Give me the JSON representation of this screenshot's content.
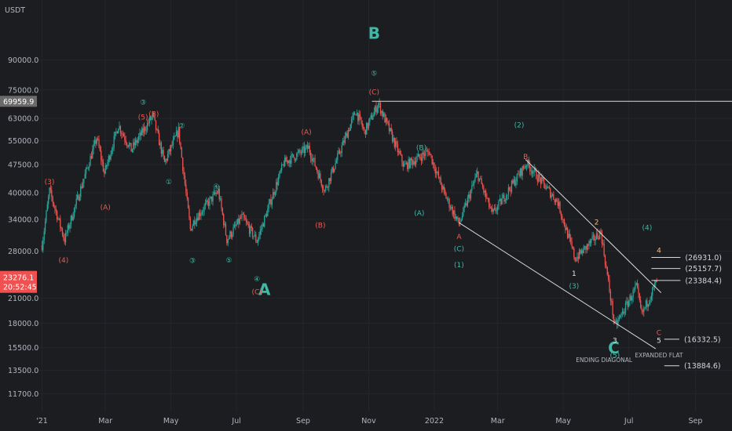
{
  "colors": {
    "background": "#1c1d21",
    "up": "#26a69a",
    "down": "#ef5350",
    "teal_label": "#3fb8a5",
    "red_label": "#f05a4f",
    "white_label": "#e6e6e6",
    "orange_label": "#f2b880",
    "price_tag": "#f05050",
    "last_tag": "#6a6a6a"
  },
  "chart_data": {
    "type": "candlestick",
    "symbol_unit": "USDT",
    "y_scale": "log",
    "ylim": [
      10500,
      130000
    ],
    "y_ticks": [
      {
        "label": "90000.0",
        "value": 90000
      },
      {
        "label": "75000.0",
        "value": 75000
      },
      {
        "label": "63000.0",
        "value": 63000
      },
      {
        "label": "55000.0",
        "value": 55000
      },
      {
        "label": "47500.0",
        "value": 47500
      },
      {
        "label": "40000.0",
        "value": 40000
      },
      {
        "label": "34000.0",
        "value": 34000
      },
      {
        "label": "28000.0",
        "value": 28000
      },
      {
        "label": "21000.0",
        "value": 21000
      },
      {
        "label": "18000.0",
        "value": 18000
      },
      {
        "label": "15500.0",
        "value": 15500
      },
      {
        "label": "13500.0",
        "value": 13500
      },
      {
        "label": "11700.0",
        "value": 11700
      }
    ],
    "x_ticks": [
      {
        "label": "'21",
        "date": "2021-01-01"
      },
      {
        "label": "Mar",
        "date": "2021-03-01"
      },
      {
        "label": "May",
        "date": "2021-05-01"
      },
      {
        "label": "Jul",
        "date": "2021-07-01"
      },
      {
        "label": "Sep",
        "date": "2021-09-01"
      },
      {
        "label": "Nov",
        "date": "2021-11-01"
      },
      {
        "label": "2022",
        "date": "2022-01-01"
      },
      {
        "label": "Mar",
        "date": "2022-03-01"
      },
      {
        "label": "May",
        "date": "2022-05-01"
      },
      {
        "label": "Jul",
        "date": "2022-07-01"
      },
      {
        "label": "Sep",
        "date": "2022-09-01"
      }
    ],
    "xlim": [
      "2020-12-28",
      "2022-10-05"
    ],
    "price_key_points": [
      {
        "date": "2021-01-01",
        "price": 29000
      },
      {
        "date": "2021-01-08",
        "price": 40500
      },
      {
        "date": "2021-01-22",
        "price": 30000
      },
      {
        "date": "2021-02-21",
        "price": 56000
      },
      {
        "date": "2021-02-28",
        "price": 45000
      },
      {
        "date": "2021-03-13",
        "price": 60500
      },
      {
        "date": "2021-03-25",
        "price": 52000
      },
      {
        "date": "2021-04-14",
        "price": 64000
      },
      {
        "date": "2021-04-25",
        "price": 48000
      },
      {
        "date": "2021-05-08",
        "price": 58500
      },
      {
        "date": "2021-05-19",
        "price": 32000
      },
      {
        "date": "2021-05-23",
        "price": 34000
      },
      {
        "date": "2021-06-14",
        "price": 40500
      },
      {
        "date": "2021-06-22",
        "price": 30000
      },
      {
        "date": "2021-07-06",
        "price": 34500
      },
      {
        "date": "2021-07-20",
        "price": 29800
      },
      {
        "date": "2021-08-14",
        "price": 48000
      },
      {
        "date": "2021-09-06",
        "price": 52700
      },
      {
        "date": "2021-09-21",
        "price": 40500
      },
      {
        "date": "2021-10-20",
        "price": 66000
      },
      {
        "date": "2021-10-28",
        "price": 58000
      },
      {
        "date": "2021-11-10",
        "price": 69000
      },
      {
        "date": "2021-12-04",
        "price": 47000
      },
      {
        "date": "2021-12-27",
        "price": 51500
      },
      {
        "date": "2022-01-10",
        "price": 40000
      },
      {
        "date": "2022-01-24",
        "price": 33000
      },
      {
        "date": "2022-02-10",
        "price": 45000
      },
      {
        "date": "2022-02-24",
        "price": 35000
      },
      {
        "date": "2022-03-28",
        "price": 48000
      },
      {
        "date": "2022-04-26",
        "price": 37700
      },
      {
        "date": "2022-05-12",
        "price": 26700
      },
      {
        "date": "2022-06-05",
        "price": 31500
      },
      {
        "date": "2022-06-18",
        "price": 17600
      },
      {
        "date": "2022-07-08",
        "price": 22500
      },
      {
        "date": "2022-07-13",
        "price": 19000
      },
      {
        "date": "2022-07-27",
        "price": 23300
      }
    ],
    "price_tags": {
      "last_high": "69959.9",
      "current_price": "23276.1",
      "countdown": "20:52:45"
    },
    "wave_labels": [
      {
        "text": "B",
        "date": "2021-11-06",
        "price": 104000,
        "color": "teal",
        "size": "big"
      },
      {
        "text": "⑤",
        "date": "2021-11-06",
        "price": 83000,
        "color": "teal"
      },
      {
        "text": "(C)",
        "date": "2021-11-06",
        "price": 74000,
        "color": "red"
      },
      {
        "text": "A",
        "date": "2021-07-27",
        "price": 21700,
        "color": "teal",
        "size": "big"
      },
      {
        "text": "C",
        "date": "2022-06-17",
        "price": 15200,
        "color": "teal",
        "size": "big"
      },
      {
        "text": "③",
        "date": "2021-04-05",
        "price": 69500,
        "color": "teal"
      },
      {
        "text": "(5)",
        "date": "2021-04-05",
        "price": 63500,
        "color": "red"
      },
      {
        "text": "(B)",
        "date": "2021-04-15",
        "price": 64700,
        "color": "red"
      },
      {
        "text": "②",
        "date": "2021-05-11",
        "price": 60200,
        "color": "teal"
      },
      {
        "text": "①",
        "date": "2021-04-29",
        "price": 42800,
        "color": "teal"
      },
      {
        "text": "(3)",
        "date": "2021-01-08",
        "price": 42800,
        "color": "red"
      },
      {
        "text": "(4)",
        "date": "2021-01-21",
        "price": 26500,
        "color": "red"
      },
      {
        "text": "(A)",
        "date": "2021-03-01",
        "price": 36600,
        "color": "red"
      },
      {
        "text": "③",
        "date": "2021-05-21",
        "price": 26400,
        "color": "teal"
      },
      {
        "text": "④",
        "date": "2021-06-12",
        "price": 41500,
        "color": "teal"
      },
      {
        "text": "⑤",
        "date": "2021-06-24",
        "price": 26500,
        "color": "teal"
      },
      {
        "text": "④",
        "date": "2021-07-20",
        "price": 23600,
        "color": "teal"
      },
      {
        "text": "(C)",
        "date": "2021-07-20",
        "price": 21800,
        "color": "red"
      },
      {
        "text": "(A)",
        "date": "2021-09-04",
        "price": 58000,
        "color": "red"
      },
      {
        "text": "(B)",
        "date": "2021-09-17",
        "price": 32800,
        "color": "red"
      },
      {
        "text": "(B)",
        "date": "2021-12-20",
        "price": 52700,
        "color": "teal"
      },
      {
        "text": "(A)",
        "date": "2021-12-18",
        "price": 35300,
        "color": "teal"
      },
      {
        "text": "(2)",
        "date": "2022-03-21",
        "price": 60500,
        "color": "teal"
      },
      {
        "text": "B",
        "date": "2022-03-27",
        "price": 49900,
        "color": "red"
      },
      {
        "text": "A",
        "date": "2022-01-24",
        "price": 30600,
        "color": "red"
      },
      {
        "text": "(C)",
        "date": "2022-01-24",
        "price": 28400,
        "color": "teal"
      },
      {
        "text": "(1)",
        "date": "2022-01-24",
        "price": 25700,
        "color": "teal"
      },
      {
        "text": "2",
        "date": "2022-06-01",
        "price": 33400,
        "color": "orange"
      },
      {
        "text": "(4)",
        "date": "2022-07-18",
        "price": 32300,
        "color": "teal"
      },
      {
        "text": "4",
        "date": "2022-07-29",
        "price": 28100,
        "color": "orange"
      },
      {
        "text": "1",
        "date": "2022-05-11",
        "price": 24400,
        "color": "white"
      },
      {
        "text": "(3)",
        "date": "2022-05-11",
        "price": 22600,
        "color": "teal"
      },
      {
        "text": "3",
        "date": "2022-06-18",
        "price": 16200,
        "color": "white"
      },
      {
        "text": "(5)",
        "date": "2022-06-18",
        "price": 14800,
        "color": "teal"
      },
      {
        "text": "C",
        "date": "2022-07-29",
        "price": 17000,
        "color": "red"
      },
      {
        "text": "5",
        "date": "2022-07-29",
        "price": 16200,
        "color": "white"
      }
    ],
    "annotations": [
      {
        "text": "ENDING DIAGONAL",
        "date": "2022-06-08",
        "price": 14200
      },
      {
        "text": "EXPANDED FLAT",
        "date": "2022-07-29",
        "price": 14600
      }
    ],
    "trend_lines": [
      {
        "from": {
          "date": "2021-11-04",
          "price": 69959.9
        },
        "to": {
          "date": "2022-10-05",
          "price": 69959.9
        }
      },
      {
        "from": {
          "date": "2022-03-27",
          "price": 49000
        },
        "to": {
          "date": "2022-07-31",
          "price": 21700
        }
      },
      {
        "from": {
          "date": "2022-01-24",
          "price": 33300
        },
        "to": {
          "date": "2022-07-26",
          "price": 15400
        }
      }
    ],
    "levels": [
      {
        "label": "(26931.0)",
        "price": 26931.0,
        "from": "2022-07-22",
        "to": "2022-08-18"
      },
      {
        "label": "(25157.7)",
        "price": 25157.7,
        "from": "2022-07-22",
        "to": "2022-08-18"
      },
      {
        "label": "(23384.4)",
        "price": 23384.4,
        "from": "2022-07-22",
        "to": "2022-08-18"
      },
      {
        "label": "(16332.5)",
        "price": 16332.5,
        "from": "2022-08-03",
        "to": "2022-08-17"
      },
      {
        "label": "(13884.6)",
        "price": 13884.6,
        "from": "2022-08-03",
        "to": "2022-08-17"
      }
    ]
  }
}
